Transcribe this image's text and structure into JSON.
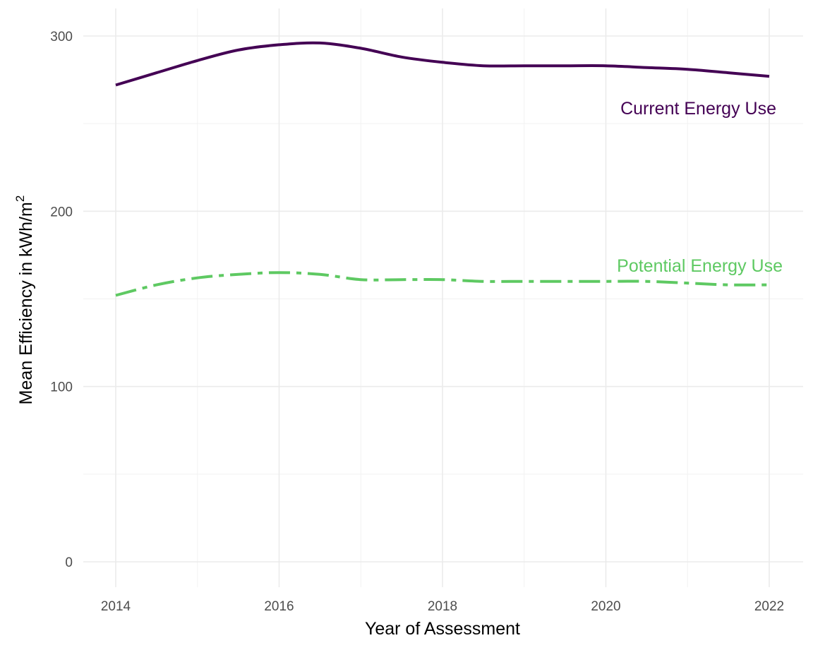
{
  "chart_data": {
    "type": "line",
    "xlabel": "Year of Assessment",
    "ylabel": "Mean Efficiency in kWh/m²",
    "ylabel_main": "Mean Efficiency in kWh",
    "ylabel_slash": "/",
    "ylabel_unit": "m",
    "ylabel_exponent": "2",
    "xlim": [
      2014,
      2022
    ],
    "ylim": [
      0,
      300
    ],
    "x_ticks": [
      2014,
      2016,
      2018,
      2020,
      2022
    ],
    "y_ticks": [
      0,
      100,
      200,
      300
    ],
    "grid": true,
    "legend": "none (direct labels)",
    "series": [
      {
        "name": "Current Energy Use",
        "color": "#440154",
        "line_style": "solid",
        "x": [
          2014,
          2014.5,
          2015,
          2015.5,
          2016,
          2016.5,
          2017,
          2017.5,
          2018,
          2018.5,
          2019,
          2019.5,
          2020,
          2020.5,
          2021,
          2021.5,
          2022
        ],
        "y": [
          272,
          279,
          286,
          292,
          295,
          296,
          293,
          288,
          285,
          283,
          283,
          283,
          283,
          282,
          281,
          279,
          277
        ]
      },
      {
        "name": "Potential Energy Use",
        "color": "#5ec962",
        "line_style": "dashdot",
        "x": [
          2014,
          2014.5,
          2015,
          2015.5,
          2016,
          2016.5,
          2017,
          2017.5,
          2018,
          2018.5,
          2019,
          2019.5,
          2020,
          2020.5,
          2021,
          2021.5,
          2022
        ],
        "y": [
          152,
          158,
          162,
          164,
          165,
          164,
          161,
          161,
          161,
          160,
          160,
          160,
          160,
          160,
          159,
          158,
          158
        ]
      }
    ]
  }
}
